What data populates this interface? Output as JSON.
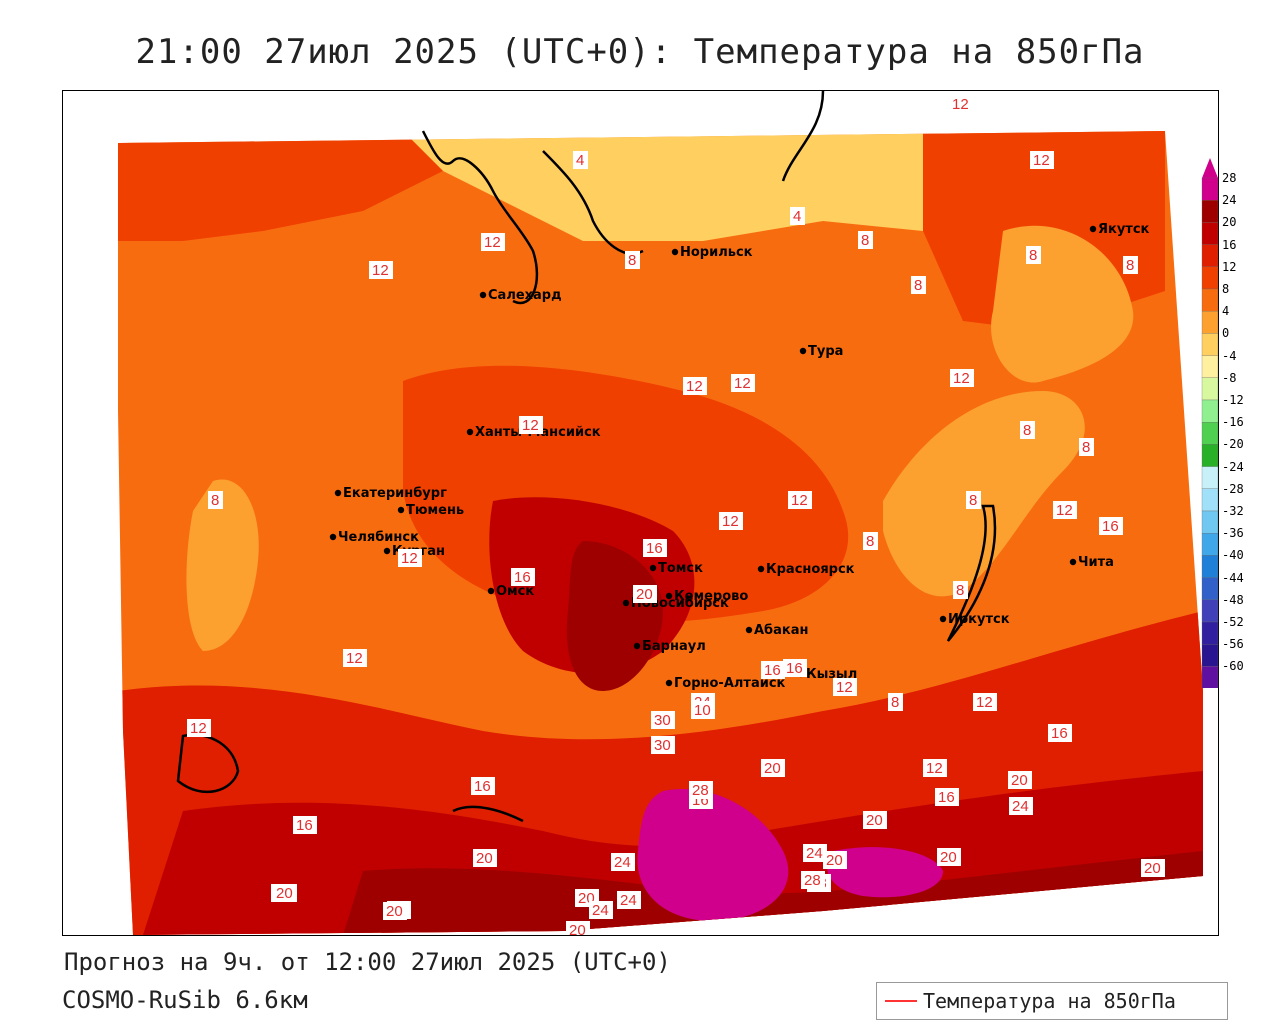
{
  "title": "21:00 27июл 2025 (UTC+0): Температура на 850гПа",
  "footer": {
    "forecast": "Прогноз на 9ч. от 12:00 27июл 2025 (UTC+0)",
    "model": "COSMO-RuSib 6.6км"
  },
  "legend": {
    "label": "Температура на 850гПа",
    "color": "#ff3333"
  },
  "colorbar": {
    "labels": [
      "28",
      "24",
      "20",
      "16",
      "12",
      "8",
      "4",
      "0",
      "-4",
      "-8",
      "-12",
      "-16",
      "-20",
      "-24",
      "-28",
      "-32",
      "-36",
      "-40",
      "-44",
      "-48",
      "-52",
      "-56",
      "-60"
    ],
    "colors": [
      "#d0008c",
      "#9e0000",
      "#c00000",
      "#e01e00",
      "#f04000",
      "#f86c10",
      "#fca030",
      "#ffd060",
      "#fff0a0",
      "#d8f8a0",
      "#90f090",
      "#50d050",
      "#28b028",
      "#c8f0f8",
      "#a0e0f8",
      "#70c8f0",
      "#40a8e8",
      "#2080d8",
      "#3060c8",
      "#4040b8",
      "#3020a0",
      "#2a1590",
      "#6010a0"
    ]
  },
  "cities": [
    {
      "name": "Норильск"
    },
    {
      "name": "Якутск"
    },
    {
      "name": "Салехард"
    },
    {
      "name": "Тура"
    },
    {
      "name": "Ханты-Мансийск"
    },
    {
      "name": "Екатеринбург"
    },
    {
      "name": "Тюмень"
    },
    {
      "name": "Челябинск"
    },
    {
      "name": "Курган"
    },
    {
      "name": "Омск"
    },
    {
      "name": "Новосибирск"
    },
    {
      "name": "Томск"
    },
    {
      "name": "Кемерово"
    },
    {
      "name": "Красноярск"
    },
    {
      "name": "Абакан"
    },
    {
      "name": "Барнаул"
    },
    {
      "name": "Горно-Алтайск"
    },
    {
      "name": "Кызыл"
    },
    {
      "name": "Иркутск"
    },
    {
      "name": "Чита"
    }
  ],
  "isotherm_labels": [
    "12",
    "4",
    "12",
    "12",
    "4",
    "8",
    "8",
    "8",
    "8",
    "12",
    "8",
    "12",
    "12",
    "12",
    "12",
    "12",
    "8",
    "8",
    "8",
    "12",
    "16",
    "8",
    "12",
    "12",
    "8",
    "12",
    "16",
    "16",
    "20",
    "16",
    "8",
    "8",
    "12",
    "20",
    "24",
    "30",
    "10",
    "16",
    "16",
    "12",
    "12",
    "20",
    "16",
    "30",
    "24",
    "20",
    "12",
    "16",
    "16",
    "28",
    "16",
    "20",
    "24",
    "20",
    "20",
    "20",
    "24",
    "20",
    "24",
    "28",
    "28",
    "24",
    "20",
    "20",
    "20",
    "24",
    "20"
  ]
}
